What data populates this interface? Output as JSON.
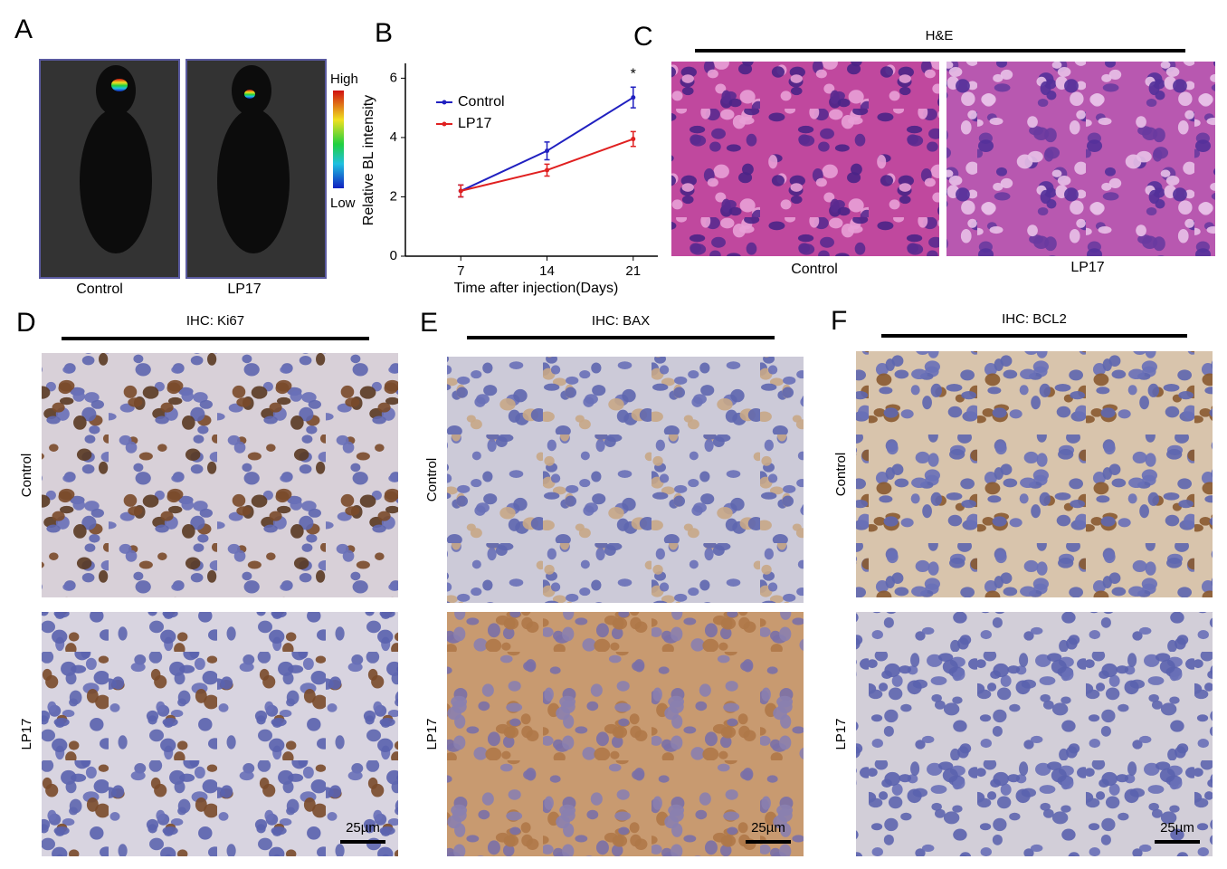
{
  "panel_labels": [
    "A",
    "B",
    "C",
    "D",
    "E",
    "F"
  ],
  "panel_a": {
    "labels": [
      "Control",
      "LP17"
    ],
    "scale_high": "High",
    "scale_low": "Low"
  },
  "chart_data": {
    "type": "line",
    "x_label": "Time after injection(Days)",
    "y_label": "Relative BL intensity",
    "x": [
      7,
      14,
      21
    ],
    "series": [
      {
        "name": "Control",
        "color": "#2020c0",
        "values": [
          2.2,
          3.55,
          5.35
        ],
        "errors": [
          0.2,
          0.3,
          0.35
        ]
      },
      {
        "name": "LP17",
        "color": "#e02020",
        "values": [
          2.2,
          2.9,
          3.95
        ],
        "errors": [
          0.2,
          0.2,
          0.25
        ]
      }
    ],
    "annotation": "*",
    "xlim": [
      2.5,
      23
    ],
    "ylim": [
      0,
      6.5
    ],
    "xticks": [
      7,
      14,
      21
    ],
    "yticks": [
      0,
      2,
      4,
      6
    ]
  },
  "panel_c": {
    "title": "H&E",
    "labels": [
      "Control",
      "LP17"
    ]
  },
  "ihc_panels": [
    {
      "title": "IHC: Ki67",
      "rows": [
        "Control",
        "LP17"
      ],
      "scale_bar": "25µm"
    },
    {
      "title": "IHC: BAX",
      "rows": [
        "Control",
        "LP17"
      ],
      "scale_bar": "25µm"
    },
    {
      "title": "IHC: BCL2",
      "rows": [
        "Control",
        "LP17"
      ],
      "scale_bar": "25µm"
    }
  ]
}
